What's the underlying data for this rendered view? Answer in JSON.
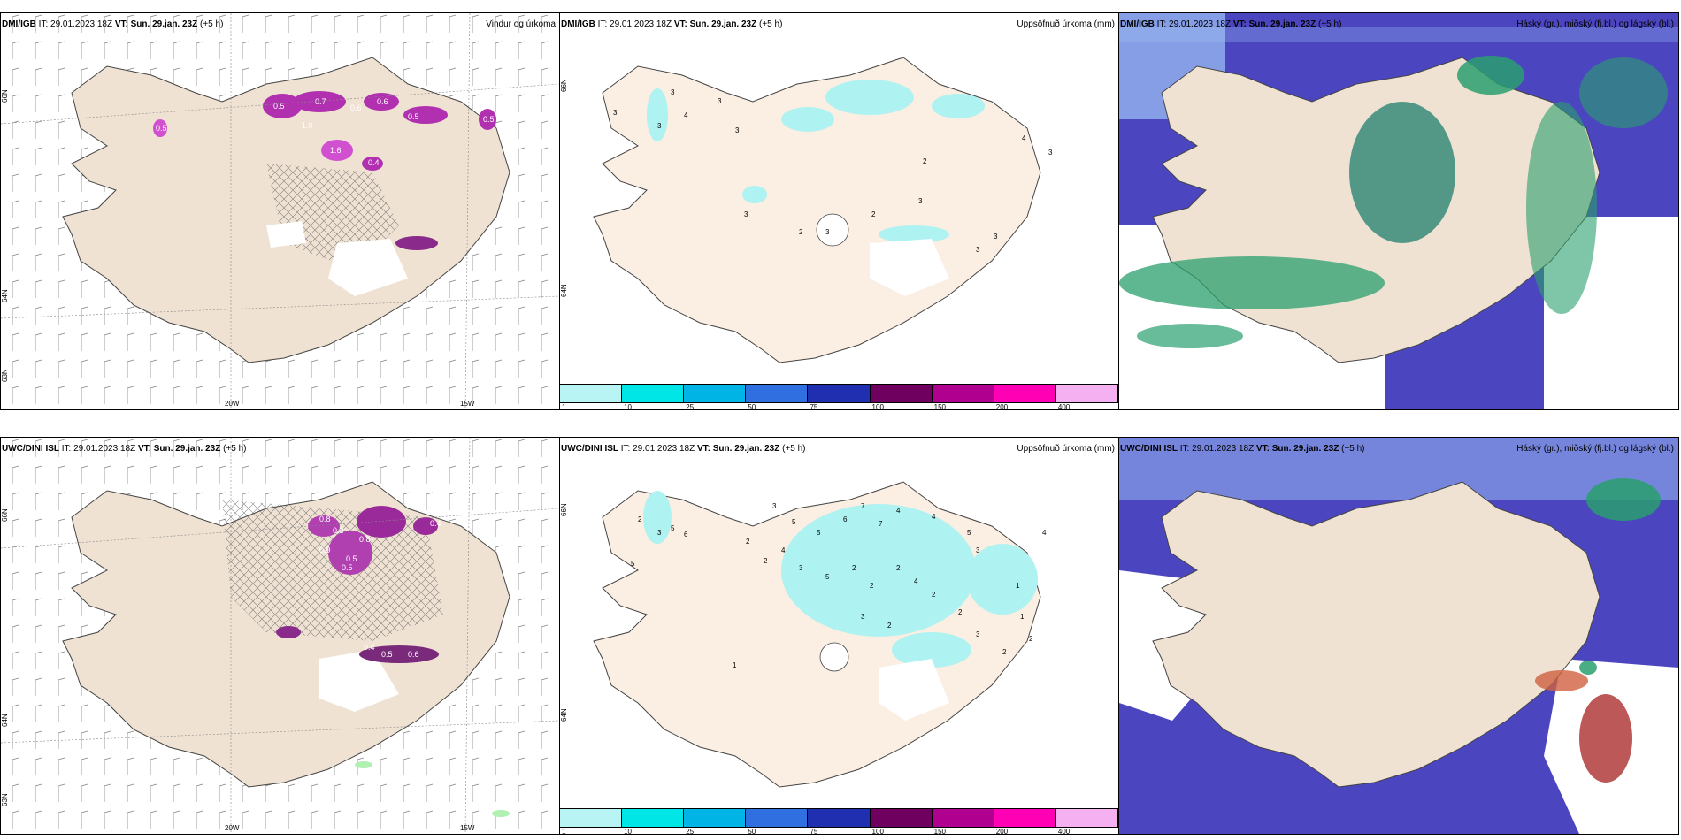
{
  "panels": {
    "p1": {
      "model": "DMI/IGB",
      "it_label": "IT:",
      "it": "29.01.2023 18Z",
      "vt_label": "VT: Sun. 29.jan. 23Z",
      "offset": "(+5 h)",
      "title": "Vindur og úrkoma"
    },
    "p2": {
      "model": "DMI/IGB",
      "it_label": "IT:",
      "it": "29.01.2023 18Z",
      "vt_label": "VT: Sun. 29.jan. 23Z",
      "offset": "(+5 h)",
      "title": "Uppsöfnuð úrkoma (mm)"
    },
    "p3": {
      "model": "DMI/IGB",
      "it_label": "IT:",
      "it": "29.01.2023 18Z",
      "vt_label": "VT: Sun. 29.jan. 23Z",
      "offset": "(+5 h)",
      "title": "Háský (gr.), miðský (fj.bl.) og lágský (bl.)"
    },
    "p4": {
      "model": "UWC/DINI ISL",
      "it_label": "IT:",
      "it": "29.01.2023 18Z",
      "vt_label": "VT: Sun. 29.jan. 23Z",
      "offset": "(+5 h)",
      "title": "Vindur og úrkoma"
    },
    "p5": {
      "model": "UWC/DINI ISL",
      "it_label": "IT:",
      "it": "29.01.2023 18Z",
      "vt_label": "VT: Sun. 29.jan. 23Z",
      "offset": "(+5 h)",
      "title": "Uppsöfnuð úrkoma (mm)"
    },
    "p6": {
      "model": "UWC/DINI ISL",
      "it_label": "IT:",
      "it": "29.01.2023 18Z",
      "vt_label": "VT: Sun. 29.jan. 23Z",
      "offset": "(+5 h)",
      "title": "Háský (gr.), miðský (fj.bl.) og lágský (bl.)"
    }
  },
  "axes": {
    "lat_labels": [
      "66N",
      "64N",
      "63N"
    ],
    "lon_labels": [
      "20W",
      "15W"
    ]
  },
  "colorbar": {
    "labels": [
      "1",
      "10",
      "25",
      "50",
      "75",
      "100",
      "150",
      "200",
      "400",
      ""
    ],
    "colors": [
      "#b8f4f4",
      "#00e6e6",
      "#00b4e6",
      "#2f6fe0",
      "#1f2fb0",
      "#700060",
      "#b00090",
      "#ff00b4",
      "#f4b0f0"
    ]
  },
  "precip_labels_top": [
    "3",
    "3",
    "4",
    "3",
    "2",
    "4",
    "3",
    "2",
    "3",
    "3",
    "3",
    "2",
    "3",
    "3",
    "3",
    "3"
  ],
  "precip_labels_bottom": [
    "3",
    "5",
    "6",
    "2",
    "3",
    "5",
    "5",
    "2",
    "4",
    "2",
    "3",
    "5",
    "6",
    "7",
    "7",
    "4",
    "4",
    "5",
    "3",
    "2",
    "2",
    "2",
    "4",
    "2",
    "2",
    "3",
    "2",
    "3",
    "1",
    "1",
    "2",
    "4",
    "2",
    "5",
    "1"
  ],
  "wind_labels_top": [
    "0.5",
    "0.7",
    "0.6",
    "0.5",
    "0.6",
    "0.4",
    "1.6",
    "0.5",
    "1.0",
    "0.5"
  ],
  "wind_labels_bottom": [
    "0.8",
    "0.3",
    "0.8",
    "0.5",
    "0.5",
    "0.4",
    "0.6",
    "0.9",
    "0.4",
    "0.5"
  ],
  "colors": {
    "land": "#efe2d3",
    "precip_purple": "#b030b0",
    "precip_pink": "#e060e0",
    "light_cyan": "#aef2f2",
    "cloud_dark": "#4b46c0",
    "cloud_mid": "#3f6fe8",
    "cloud_light": "#9fc3f5",
    "cloud_green": "#2a9f6e",
    "cloud_red": "#b23b3b"
  }
}
